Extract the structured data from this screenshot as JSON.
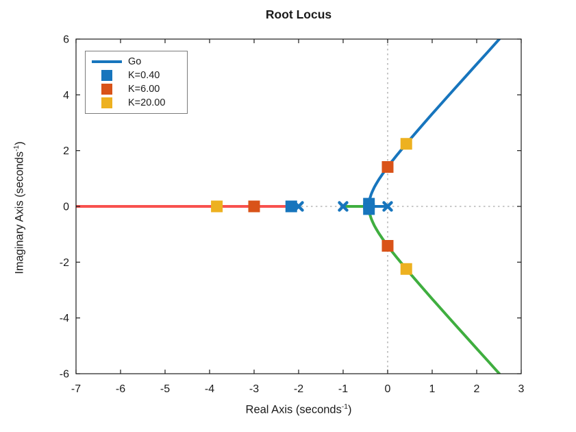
{
  "title": "Root Locus",
  "colors": {
    "blue": "#1775bd",
    "orange": "#d95319",
    "yellow": "#edb120",
    "green": "#3fae3f",
    "red": "#f8514e",
    "grid_dotted": "#a6a6a6",
    "axes": "#1a1a1a",
    "text": "#1a1a1a"
  },
  "legend": {
    "items": [
      {
        "label": "Go",
        "swatch": "line",
        "color_key": "blue"
      },
      {
        "label": "K=0.40",
        "swatch": "square",
        "color_key": "blue"
      },
      {
        "label": "K=6.00",
        "swatch": "square",
        "color_key": "orange"
      },
      {
        "label": "K=20.00",
        "swatch": "square",
        "color_key": "yellow"
      }
    ]
  },
  "x_axis": {
    "label_main": "Real Axis (seconds",
    "label_sup": "-1",
    "label_end": ")",
    "tick_labels": [
      "-7",
      "-6",
      "-5",
      "-4",
      "-3",
      "-2",
      "-1",
      "0",
      "1",
      "2",
      "3"
    ]
  },
  "y_axis": {
    "label_main": "Imaginary Axis (seconds",
    "label_sup": "-1",
    "label_end": ")",
    "tick_labels": [
      "-6",
      "-4",
      "-2",
      "0",
      "2",
      "4",
      "6"
    ]
  },
  "chart_data": {
    "type": "line",
    "title": "Root Locus",
    "xlabel": "Real Axis (seconds^-1)",
    "ylabel": "Imaginary Axis (seconds^-1)",
    "xlim": [
      -7,
      3
    ],
    "ylim": [
      -6,
      6
    ],
    "x_tick_values": [
      -7,
      -6,
      -5,
      -4,
      -3,
      -2,
      -1,
      0,
      1,
      2,
      3
    ],
    "y_tick_values": [
      -6,
      -4,
      -2,
      0,
      2,
      4,
      6
    ],
    "zero_lines": {
      "style": "dotted",
      "x_at": 0,
      "y_at": 0
    },
    "open_loop_poles": [
      [
        -2,
        0
      ],
      [
        -1,
        0
      ],
      [
        0,
        0
      ]
    ],
    "branches": [
      {
        "name": "real-axis-branch",
        "color_key": "red",
        "points": [
          [
            -7,
            0
          ],
          [
            -2,
            0
          ]
        ]
      },
      {
        "name": "upper-complex-branch",
        "color_key": "blue",
        "points": [
          [
            0,
            0
          ],
          [
            -0.423,
            0
          ],
          [
            -0.42,
            0.096
          ],
          [
            -0.41,
            0.21
          ],
          [
            -0.4,
            0.283
          ],
          [
            -0.37,
            0.437
          ],
          [
            -0.35,
            0.517
          ],
          [
            -0.3,
            0.686
          ],
          [
            -0.25,
            0.829
          ],
          [
            -0.2,
            0.959
          ],
          [
            -0.15,
            1.08
          ],
          [
            -0.1,
            1.196
          ],
          [
            0,
            1.414
          ],
          [
            0.1,
            1.622
          ],
          [
            0.2,
            1.822
          ],
          [
            0.3,
            2.017
          ],
          [
            0.42,
            2.244
          ],
          [
            0.5,
            2.398
          ],
          [
            0.6,
            2.585
          ],
          [
            0.8,
            2.953
          ],
          [
            1.0,
            3.317
          ],
          [
            1.25,
            3.767
          ],
          [
            1.5,
            4.213
          ],
          [
            1.75,
            4.657
          ],
          [
            2.0,
            5.099
          ],
          [
            2.25,
            5.54
          ],
          [
            2.52,
            6.02
          ]
        ]
      },
      {
        "name": "lower-complex-branch",
        "color_key": "green",
        "points": [
          [
            -1,
            0
          ],
          [
            -0.423,
            0
          ],
          [
            -0.42,
            -0.096
          ],
          [
            -0.41,
            -0.21
          ],
          [
            -0.4,
            -0.283
          ],
          [
            -0.37,
            -0.437
          ],
          [
            -0.35,
            -0.517
          ],
          [
            -0.3,
            -0.686
          ],
          [
            -0.25,
            -0.829
          ],
          [
            -0.2,
            -0.959
          ],
          [
            -0.15,
            -1.08
          ],
          [
            -0.1,
            -1.196
          ],
          [
            0,
            -1.414
          ],
          [
            0.1,
            -1.622
          ],
          [
            0.2,
            -1.822
          ],
          [
            0.3,
            -2.017
          ],
          [
            0.42,
            -2.244
          ],
          [
            0.5,
            -2.398
          ],
          [
            0.6,
            -2.585
          ],
          [
            0.8,
            -2.953
          ],
          [
            1.0,
            -3.317
          ],
          [
            1.25,
            -3.767
          ],
          [
            1.5,
            -4.213
          ],
          [
            1.75,
            -4.657
          ],
          [
            2.0,
            -5.099
          ],
          [
            2.25,
            -5.54
          ],
          [
            2.52,
            -6.02
          ]
        ]
      }
    ],
    "k_markers": [
      {
        "label": "K=0.40",
        "color_key": "blue",
        "points": [
          [
            -2.165,
            0
          ],
          [
            -0.42,
            0.096
          ],
          [
            -0.42,
            -0.096
          ]
        ]
      },
      {
        "label": "K=6.00",
        "color_key": "orange",
        "points": [
          [
            -3.0,
            0
          ],
          [
            0,
            1.414
          ],
          [
            0,
            -1.414
          ]
        ]
      },
      {
        "label": "K=20.00",
        "color_key": "yellow",
        "points": [
          [
            -3.837,
            0
          ],
          [
            0.419,
            2.244
          ],
          [
            0.419,
            -2.244
          ]
        ]
      }
    ],
    "legend_entries": [
      "Go",
      "K=0.40",
      "K=6.00",
      "K=20.00"
    ],
    "legend_position": "upper-left",
    "grid": false
  }
}
